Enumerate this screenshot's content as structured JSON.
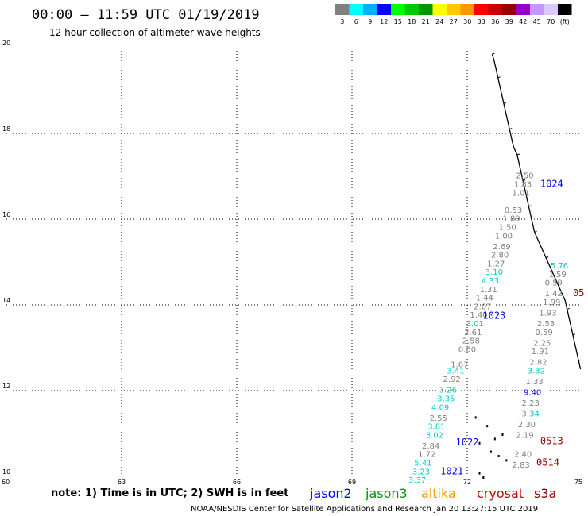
{
  "title": "00:00 – 11:59 UTC 01/19/2019",
  "subtitle": "12 hour collection of altimeter wave heights",
  "colorbar": {
    "colors": [
      "#808080",
      "#00ffff",
      "#00b0ff",
      "#0000ff",
      "#00ff00",
      "#00c800",
      "#009600",
      "#ffff00",
      "#ffc800",
      "#ff9600",
      "#ff0000",
      "#c80000",
      "#960000",
      "#9600c8",
      "#c896ff",
      "#dcc8ff",
      "#000000"
    ],
    "labels": [
      "3",
      "6",
      "9",
      "12",
      "15",
      "18",
      "21",
      "24",
      "27",
      "30",
      "33",
      "36",
      "39",
      "42",
      "45",
      "70",
      "(ft)"
    ]
  },
  "chart_data": {
    "type": "scatter",
    "xlim": [
      60,
      75
    ],
    "ylim": [
      10,
      20
    ],
    "x_ticks": [
      "60",
      "63",
      "66",
      "69",
      "72",
      "75"
    ],
    "y_ticks": [
      "10",
      "12",
      "14",
      "16",
      "18",
      "20"
    ],
    "grid": true,
    "series": [
      {
        "name": "jason2",
        "color": "#0000ff",
        "pass_labels": [
          {
            "text": "1024",
            "x": 74.2,
            "y": 16.75
          },
          {
            "text": "1023",
            "x": 72.7,
            "y": 13.68
          },
          {
            "text": "1022",
            "x": 72.0,
            "y": 10.72
          },
          {
            "text": "1021",
            "x": 71.6,
            "y": 10.05
          }
        ]
      },
      {
        "name": "jason3",
        "color": "#009600",
        "pass_labels": []
      },
      {
        "name": "altika",
        "color": "#ff9600",
        "pass_labels": []
      },
      {
        "name": "cryosat",
        "color": "#c80000",
        "pass_labels": []
      },
      {
        "name": "s3a",
        "color": "#960000",
        "pass_labels": [
          {
            "text": "05",
            "x": 74.9,
            "y": 14.2
          },
          {
            "text": "0513",
            "x": 74.2,
            "y": 10.75
          },
          {
            "text": "0514",
            "x": 74.1,
            "y": 10.25
          }
        ]
      }
    ],
    "points": [
      {
        "x": 73.5,
        "y": 16.95,
        "v": "2.50",
        "c": "#808080"
      },
      {
        "x": 73.45,
        "y": 16.75,
        "v": "1.83",
        "c": "#808080"
      },
      {
        "x": 73.4,
        "y": 16.55,
        "v": "1.01",
        "c": "#808080"
      },
      {
        "x": 73.2,
        "y": 16.15,
        "v": "0.53",
        "c": "#808080"
      },
      {
        "x": 73.15,
        "y": 15.95,
        "v": "1.89",
        "c": "#808080"
      },
      {
        "x": 73.05,
        "y": 15.75,
        "v": "1.50",
        "c": "#808080"
      },
      {
        "x": 72.95,
        "y": 15.55,
        "v": "1.00",
        "c": "#808080"
      },
      {
        "x": 72.9,
        "y": 15.3,
        "v": "2.69",
        "c": "#808080"
      },
      {
        "x": 72.85,
        "y": 15.1,
        "v": "2.80",
        "c": "#808080"
      },
      {
        "x": 72.75,
        "y": 14.9,
        "v": "1.27",
        "c": "#808080"
      },
      {
        "x": 72.7,
        "y": 14.7,
        "v": "3.10",
        "c": "#00cccc"
      },
      {
        "x": 72.6,
        "y": 14.5,
        "v": "4.33",
        "c": "#00cccc"
      },
      {
        "x": 72.55,
        "y": 14.3,
        "v": "1.31",
        "c": "#808080"
      },
      {
        "x": 72.45,
        "y": 14.1,
        "v": "1.44",
        "c": "#808080"
      },
      {
        "x": 72.4,
        "y": 13.9,
        "v": "2.07",
        "c": "#808080"
      },
      {
        "x": 72.3,
        "y": 13.7,
        "v": "1.40",
        "c": "#808080"
      },
      {
        "x": 72.2,
        "y": 13.5,
        "v": "3.01",
        "c": "#00cccc"
      },
      {
        "x": 72.15,
        "y": 13.3,
        "v": "2.61",
        "c": "#808080"
      },
      {
        "x": 72.1,
        "y": 13.1,
        "v": "2.58",
        "c": "#808080"
      },
      {
        "x": 72.0,
        "y": 12.9,
        "v": "0.60",
        "c": "#808080"
      },
      {
        "x": 74.4,
        "y": 14.85,
        "v": "5.76",
        "c": "#00cccc"
      },
      {
        "x": 74.35,
        "y": 14.65,
        "v": "1.59",
        "c": "#808080"
      },
      {
        "x": 74.25,
        "y": 14.45,
        "v": "0.59",
        "c": "#808080"
      },
      {
        "x": 74.25,
        "y": 14.2,
        "v": "1.42",
        "c": "#808080"
      },
      {
        "x": 74.2,
        "y": 14.0,
        "v": "1.99",
        "c": "#808080"
      },
      {
        "x": 74.1,
        "y": 13.75,
        "v": "1.93",
        "c": "#808080"
      },
      {
        "x": 74.05,
        "y": 13.5,
        "v": "2.53",
        "c": "#808080"
      },
      {
        "x": 74.0,
        "y": 13.3,
        "v": "0.59",
        "c": "#808080"
      },
      {
        "x": 73.95,
        "y": 13.05,
        "v": "2.25",
        "c": "#808080"
      },
      {
        "x": 73.9,
        "y": 12.85,
        "v": "1.91",
        "c": "#808080"
      },
      {
        "x": 73.85,
        "y": 12.6,
        "v": "2.82",
        "c": "#808080"
      },
      {
        "x": 73.8,
        "y": 12.4,
        "v": "3.32",
        "c": "#00cccc"
      },
      {
        "x": 73.75,
        "y": 12.15,
        "v": "1.33",
        "c": "#808080"
      },
      {
        "x": 73.7,
        "y": 11.9,
        "v": "9.40",
        "c": "#0000ff"
      },
      {
        "x": 73.65,
        "y": 11.65,
        "v": "2.23",
        "c": "#808080"
      },
      {
        "x": 73.65,
        "y": 11.4,
        "v": "3.34",
        "c": "#00cccc"
      },
      {
        "x": 73.55,
        "y": 11.15,
        "v": "2.30",
        "c": "#808080"
      },
      {
        "x": 73.5,
        "y": 10.9,
        "v": "2.19",
        "c": "#808080"
      },
      {
        "x": 73.45,
        "y": 10.45,
        "v": "2.40",
        "c": "#808080"
      },
      {
        "x": 73.4,
        "y": 10.2,
        "v": "2.83",
        "c": "#808080"
      },
      {
        "x": 71.8,
        "y": 12.55,
        "v": "1.67",
        "c": "#808080"
      },
      {
        "x": 71.7,
        "y": 12.4,
        "v": "3.41",
        "c": "#00cccc"
      },
      {
        "x": 71.6,
        "y": 12.2,
        "v": "2.92",
        "c": "#808080"
      },
      {
        "x": 71.5,
        "y": 11.95,
        "v": "3.26",
        "c": "#00cccc"
      },
      {
        "x": 71.45,
        "y": 11.75,
        "v": "3.35",
        "c": "#00cccc"
      },
      {
        "x": 71.3,
        "y": 11.55,
        "v": "4.09",
        "c": "#00cccc"
      },
      {
        "x": 71.25,
        "y": 11.3,
        "v": "2.55",
        "c": "#808080"
      },
      {
        "x": 71.2,
        "y": 11.1,
        "v": "3.81",
        "c": "#00cccc"
      },
      {
        "x": 71.15,
        "y": 10.9,
        "v": "3.02",
        "c": "#00cccc"
      },
      {
        "x": 71.05,
        "y": 10.65,
        "v": "2.84",
        "c": "#808080"
      },
      {
        "x": 70.95,
        "y": 10.45,
        "v": "1.72",
        "c": "#808080"
      },
      {
        "x": 70.85,
        "y": 10.25,
        "v": "5.41",
        "c": "#00cccc"
      },
      {
        "x": 70.8,
        "y": 10.05,
        "v": "3.23",
        "c": "#00cccc"
      },
      {
        "x": 70.7,
        "y": 9.85,
        "v": "3.37",
        "c": "#00cccc"
      }
    ],
    "coastline": [
      [
        72.65,
        19.85
      ],
      [
        72.7,
        19.7
      ],
      [
        72.75,
        19.5
      ],
      [
        72.8,
        19.3
      ],
      [
        72.85,
        19.1
      ],
      [
        72.9,
        18.9
      ],
      [
        72.95,
        18.7
      ],
      [
        73.0,
        18.5
      ],
      [
        73.05,
        18.3
      ],
      [
        73.1,
        18.1
      ],
      [
        73.15,
        17.9
      ],
      [
        73.2,
        17.7
      ],
      [
        73.3,
        17.5
      ],
      [
        73.35,
        17.3
      ],
      [
        73.4,
        17.1
      ],
      [
        73.45,
        16.9
      ],
      [
        73.5,
        16.7
      ],
      [
        73.55,
        16.5
      ],
      [
        73.6,
        16.3
      ],
      [
        73.65,
        16.1
      ],
      [
        73.7,
        15.9
      ],
      [
        73.75,
        15.7
      ],
      [
        73.85,
        15.5
      ],
      [
        73.95,
        15.3
      ],
      [
        74.05,
        15.1
      ],
      [
        74.15,
        14.9
      ],
      [
        74.25,
        14.7
      ],
      [
        74.35,
        14.5
      ],
      [
        74.45,
        14.3
      ],
      [
        74.55,
        14.1
      ],
      [
        74.6,
        13.9
      ],
      [
        74.65,
        13.7
      ],
      [
        74.7,
        13.5
      ],
      [
        74.75,
        13.3
      ],
      [
        74.8,
        13.1
      ],
      [
        74.85,
        12.9
      ],
      [
        74.9,
        12.7
      ],
      [
        74.95,
        12.5
      ]
    ]
  },
  "legend": {
    "note": "note: 1) Time is in UTC; 2) SWH is in feet",
    "satellites": [
      {
        "label": "jason2",
        "color": "#0000ff"
      },
      {
        "label": "jason3",
        "color": "#009600"
      },
      {
        "label": "altika",
        "color": "#ff9600"
      },
      {
        "label": "cryosat",
        "color": "#c80000"
      },
      {
        "label": "s3a",
        "color": "#960000"
      }
    ]
  },
  "credit": "NOAA/NESDIS Center for Satellite Applications and Research   Jan 20 13:27:15 UTC 2019"
}
